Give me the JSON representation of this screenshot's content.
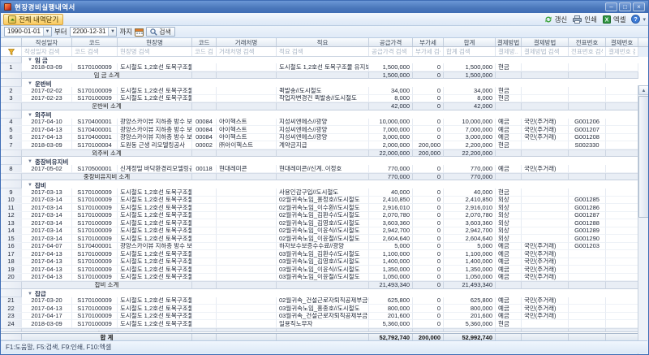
{
  "window": {
    "title": "현장경비실행내역서",
    "minimize": "–",
    "maximize": "□",
    "close": "×"
  },
  "toolbar": {
    "collapse_all_label": "전체 내역닫기",
    "refresh_label": "갱신",
    "print_label": "인쇄",
    "excel_label": "엑셀"
  },
  "filter_bar": {
    "date_from": "1990-01-01",
    "from_label": "부터",
    "date_to": "2200-12-31",
    "to_label": "까지",
    "search_label": "검색"
  },
  "grid": {
    "columns": [
      {
        "label": "작성일자",
        "placeholder": "작성일자 검색"
      },
      {
        "label": "코드",
        "placeholder": "코드 검색"
      },
      {
        "label": "현장명",
        "placeholder": "현장명 검색"
      },
      {
        "label": "코드",
        "placeholder": "코드 검색"
      },
      {
        "label": "거래처명",
        "placeholder": "거래처명 검색"
      },
      {
        "label": "적요",
        "placeholder": "적요 검색"
      },
      {
        "label": "공급가격",
        "placeholder": "공급가격 검색"
      },
      {
        "label": "부가세",
        "placeholder": "부가세 검색"
      },
      {
        "label": "합계",
        "placeholder": "합계 검색"
      },
      {
        "label": "결제방법",
        "placeholder": "결제방..."
      },
      {
        "label": "결제방법",
        "placeholder": "결제방법 검색"
      },
      {
        "label": "전표번호",
        "placeholder": "전표번호 검색"
      },
      {
        "label": "결제번호",
        "placeholder": "결제번호 검색"
      }
    ],
    "groups": [
      {
        "name": "임 금",
        "subtotal_label": "임 금 소계",
        "subtotal": {
          "supply": "1,500,000",
          "vat": "0",
          "total": "1,500,000"
        },
        "rows": [
          {
            "n": "1",
            "date": "2018-03-09",
            "code": "S170100009",
            "site": "도시철도 1,2호선 토목구조물 유지...",
            "vcode": "",
            "vendor": "",
            "desc": "도시철도 1,2호선 토목구조물 유지보수공사...",
            "supply": "1,500,000",
            "vat": "0",
            "total": "1,500,000",
            "pay": "현금",
            "pay2": "",
            "slip": "",
            "payno": ""
          }
        ]
      },
      {
        "name": "운반비",
        "subtotal_label": "운반비 소계",
        "subtotal": {
          "supply": "42,000",
          "vat": "0",
          "total": "42,000"
        },
        "rows": [
          {
            "n": "2",
            "date": "2017-02-02",
            "code": "S170100009",
            "site": "도시철도 1,2호선 토목구조물 유지...",
            "vcode": "",
            "vendor": "",
            "desc": "퀵발송//도시철도",
            "supply": "34,000",
            "vat": "0",
            "total": "34,000",
            "pay": "현금",
            "pay2": "",
            "slip": "",
            "payno": ""
          },
          {
            "n": "3",
            "date": "2017-02-23",
            "code": "S170100009",
            "site": "도시철도 1,2호선 토목구조물 유지...",
            "vcode": "",
            "vendor": "",
            "desc": "작업자변경건 퀵발송//도시철도",
            "supply": "8,000",
            "vat": "0",
            "total": "8,000",
            "pay": "현금",
            "pay2": "",
            "slip": "",
            "payno": ""
          }
        ]
      },
      {
        "name": "외주비",
        "subtotal_label": "외주비 소계",
        "subtotal": {
          "supply": "22,000,000",
          "vat": "200,000",
          "total": "22,200,000"
        },
        "rows": [
          {
            "n": "4",
            "date": "2017-04-10",
            "code": "S170400001",
            "site": "광양스카이뷰 지하층 방수 보수공사",
            "vcode": "00084",
            "vendor": "아이헥스트",
            "desc": "지성씨엔에스//광양",
            "supply": "10,000,000",
            "vat": "0",
            "total": "10,000,000",
            "pay": "예금",
            "pay2": "국민(주거래)",
            "slip": "G001206",
            "payno": ""
          },
          {
            "n": "5",
            "date": "2017-04-13",
            "code": "S170400001",
            "site": "광양스카이뷰 지하층 방수 보수공사",
            "vcode": "00084",
            "vendor": "아이헥스트",
            "desc": "지성씨엔에스//광양",
            "supply": "7,000,000",
            "vat": "0",
            "total": "7,000,000",
            "pay": "예금",
            "pay2": "국민(주거래)",
            "slip": "G001207",
            "payno": ""
          },
          {
            "n": "6",
            "date": "2017-04-13",
            "code": "S170400001",
            "site": "광양스카이뷰 지하층 방수 보수공사",
            "vcode": "00084",
            "vendor": "아이헥스트",
            "desc": "지성씨엔에스//광양",
            "supply": "3,000,000",
            "vat": "0",
            "total": "3,000,000",
            "pay": "예금",
            "pay2": "국민(주거래)",
            "slip": "G001208",
            "payno": ""
          },
          {
            "n": "7",
            "date": "2018-03-09",
            "code": "S170100004",
            "site": "도원동 근생 리모델링공사",
            "vcode": "00002",
            "vendor": "㈜아이헥스트",
            "desc": "계약금지급",
            "supply": "2,000,000",
            "vat": "200,000",
            "total": "2,200,000",
            "pay": "현금",
            "pay2": "",
            "slip": "S002330",
            "payno": ""
          }
        ]
      },
      {
        "name": "중장비유지비",
        "subtotal_label": "중장비유지비 소계",
        "subtotal": {
          "supply": "770,000",
          "vat": "0",
          "total": "770,000"
        },
        "rows": [
          {
            "n": "8",
            "date": "2017-05-02",
            "code": "S170500001",
            "site": "신계정밀 바닥환경리모델링공사 처...",
            "vcode": "00118",
            "vendor": "현대레미콘",
            "desc": "현대레미콘//신계..이정호",
            "supply": "770,000",
            "vat": "0",
            "total": "770,000",
            "pay": "예금",
            "pay2": "국민(주거래)",
            "slip": "",
            "payno": ""
          }
        ]
      },
      {
        "name": "잡비",
        "subtotal_label": "잡비 소계",
        "subtotal": {
          "supply": "21,493,340",
          "vat": "0",
          "total": "21,493,340"
        },
        "rows": [
          {
            "n": "9",
            "date": "2017-03-13",
            "code": "S170100009",
            "site": "도시철도 1,2호선 토목구조물 유지...",
            "vcode": "",
            "vendor": "",
            "desc": "사용인감구입//도시철도",
            "supply": "40,000",
            "vat": "0",
            "total": "40,000",
            "pay": "현금",
            "pay2": "",
            "slip": "",
            "payno": ""
          },
          {
            "n": "10",
            "date": "2017-03-14",
            "code": "S170100009",
            "site": "도시철도 1,2호선 토목구조물 유지...",
            "vcode": "",
            "vendor": "",
            "desc": "02월귀속노임_홍정호//도시철도",
            "supply": "2,410,850",
            "vat": "0",
            "total": "2,410,850",
            "pay": "외상",
            "pay2": "",
            "slip": "G001285",
            "payno": ""
          },
          {
            "n": "11",
            "date": "2017-03-14",
            "code": "S170100009",
            "site": "도시철도 1,2호선 토목구조물 유지...",
            "vcode": "",
            "vendor": "",
            "desc": "02월귀속노임_이수환//도시철도",
            "supply": "2,916,010",
            "vat": "0",
            "total": "2,916,010",
            "pay": "외상",
            "pay2": "",
            "slip": "G001286",
            "payno": ""
          },
          {
            "n": "12",
            "date": "2017-03-14",
            "code": "S170100009",
            "site": "도시철도 1,2호선 토목구조물 유지...",
            "vcode": "",
            "vendor": "",
            "desc": "02월귀속노임_김환수//도시철도",
            "supply": "2,070,780",
            "vat": "0",
            "total": "2,070,780",
            "pay": "외상",
            "pay2": "",
            "slip": "G001287",
            "payno": ""
          },
          {
            "n": "13",
            "date": "2017-03-14",
            "code": "S170100009",
            "site": "도시철도 1,2호선 토목구조물 유지...",
            "vcode": "",
            "vendor": "",
            "desc": "02월귀속노임_김영호//도시철도",
            "supply": "3,603,360",
            "vat": "0",
            "total": "3,603,360",
            "pay": "외상",
            "pay2": "",
            "slip": "G001288",
            "payno": ""
          },
          {
            "n": "14",
            "date": "2017-03-14",
            "code": "S170100009",
            "site": "도시철도 1,2호선 토목구조물 유지...",
            "vcode": "",
            "vendor": "",
            "desc": "02월귀속노임_이윤식//도시철도",
            "supply": "2,942,700",
            "vat": "0",
            "total": "2,942,700",
            "pay": "외상",
            "pay2": "",
            "slip": "G001289",
            "payno": ""
          },
          {
            "n": "15",
            "date": "2017-03-14",
            "code": "S170100009",
            "site": "도시철도 1,2호선 토목구조물 유지...",
            "vcode": "",
            "vendor": "",
            "desc": "02월귀속노임_이윤철//도시철도",
            "supply": "2,604,640",
            "vat": "0",
            "total": "2,604,640",
            "pay": "외상",
            "pay2": "",
            "slip": "G001290",
            "payno": ""
          },
          {
            "n": "16",
            "date": "2017-04-07",
            "code": "S170400001",
            "site": "광양스카이뷰 지하층 방수 보수공사",
            "vcode": "",
            "vendor": "",
            "desc": "하자보수보증수수료//광양",
            "supply": "5,000",
            "vat": "0",
            "total": "5,000",
            "pay": "예금",
            "pay2": "국민(주거래)",
            "slip": "G001203",
            "payno": ""
          },
          {
            "n": "17",
            "date": "2017-04-13",
            "code": "S170100009",
            "site": "도시철도 1,2호선 토목구조물 유지...",
            "vcode": "",
            "vendor": "",
            "desc": "03월귀속노임_김환수//도시철도",
            "supply": "1,100,000",
            "vat": "0",
            "total": "1,100,000",
            "pay": "예금",
            "pay2": "국민(주거래)",
            "slip": "",
            "payno": ""
          },
          {
            "n": "18",
            "date": "2017-04-13",
            "code": "S170100009",
            "site": "도시철도 1,2호선 토목구조물 유지...",
            "vcode": "",
            "vendor": "",
            "desc": "03월귀속노임_김영호//도시철도",
            "supply": "1,400,000",
            "vat": "0",
            "total": "1,400,000",
            "pay": "예금",
            "pay2": "국민(주거래)",
            "slip": "",
            "payno": ""
          },
          {
            "n": "19",
            "date": "2017-04-13",
            "code": "S170100009",
            "site": "도시철도 1,2호선 토목구조물 유지...",
            "vcode": "",
            "vendor": "",
            "desc": "03월귀속노임_이윤식//도시철도",
            "supply": "1,350,000",
            "vat": "0",
            "total": "1,350,000",
            "pay": "예금",
            "pay2": "국민(주거래)",
            "slip": "",
            "payno": ""
          },
          {
            "n": "20",
            "date": "2017-04-13",
            "code": "S170100009",
            "site": "도시철도 1,2호선 토목구조물 유지...",
            "vcode": "",
            "vendor": "",
            "desc": "03월귀속노임_이윤철//도시철도",
            "supply": "1,050,000",
            "vat": "0",
            "total": "1,050,000",
            "pay": "예금",
            "pay2": "국민(주거래)",
            "slip": "",
            "payno": ""
          }
        ]
      },
      {
        "name": "잡급",
        "subtotal_label": "잡급 소계",
        "clipped": true,
        "subtotal": {
          "supply": "6,987,400",
          "vat": "0",
          "total": "6,987,400"
        },
        "rows": [
          {
            "n": "21",
            "date": "2017-03-20",
            "code": "S170100009",
            "site": "도시철도 1,2호선 토목구조물 유지...",
            "vcode": "",
            "vendor": "",
            "desc": "02월귀속_건설근로자퇴직공제부금비",
            "supply": "625,800",
            "vat": "0",
            "total": "625,800",
            "pay": "예금",
            "pay2": "국민(주거래)",
            "slip": "",
            "payno": ""
          },
          {
            "n": "22",
            "date": "2017-04-13",
            "code": "S170100009",
            "site": "도시철도 1,2호선 토목구조물 유지...",
            "vcode": "",
            "vendor": "",
            "desc": "03월귀속노임_홍종호//도시철도",
            "supply": "800,000",
            "vat": "0",
            "total": "800,000",
            "pay": "예금",
            "pay2": "국민(주거래)",
            "slip": "",
            "payno": ""
          },
          {
            "n": "23",
            "date": "2017-04-17",
            "code": "S170100009",
            "site": "도시철도 1,2호선 토목구조물 유지...",
            "vcode": "",
            "vendor": "",
            "desc": "03월귀속_건설근로자퇴직공제부금",
            "supply": "201,600",
            "vat": "0",
            "total": "201,600",
            "pay": "예금",
            "pay2": "국민(주거래)",
            "slip": "",
            "payno": ""
          },
          {
            "n": "24",
            "date": "2018-03-09",
            "code": "S170100009",
            "site": "도시철도 1,2호선 토목구조물 유지...",
            "vcode": "",
            "vendor": "",
            "desc": "일용직노무자",
            "supply": "5,360,000",
            "vat": "0",
            "total": "5,360,000",
            "pay": "현금",
            "pay2": "",
            "slip": "",
            "payno": ""
          }
        ]
      }
    ],
    "grand_total": {
      "label": "합 계",
      "supply": "52,792,740",
      "vat": "200,000",
      "total": "52,992,740"
    }
  },
  "status_bar": {
    "text": "F1:도움말, F5:검색, F9:인쇄, F10:엑셀"
  },
  "colors": {
    "titlebar": "#4a77ba",
    "button_highlight": "#fcd97e",
    "credit_blue": "#1d2535",
    "subtotal_bg": "#e9eef5"
  }
}
